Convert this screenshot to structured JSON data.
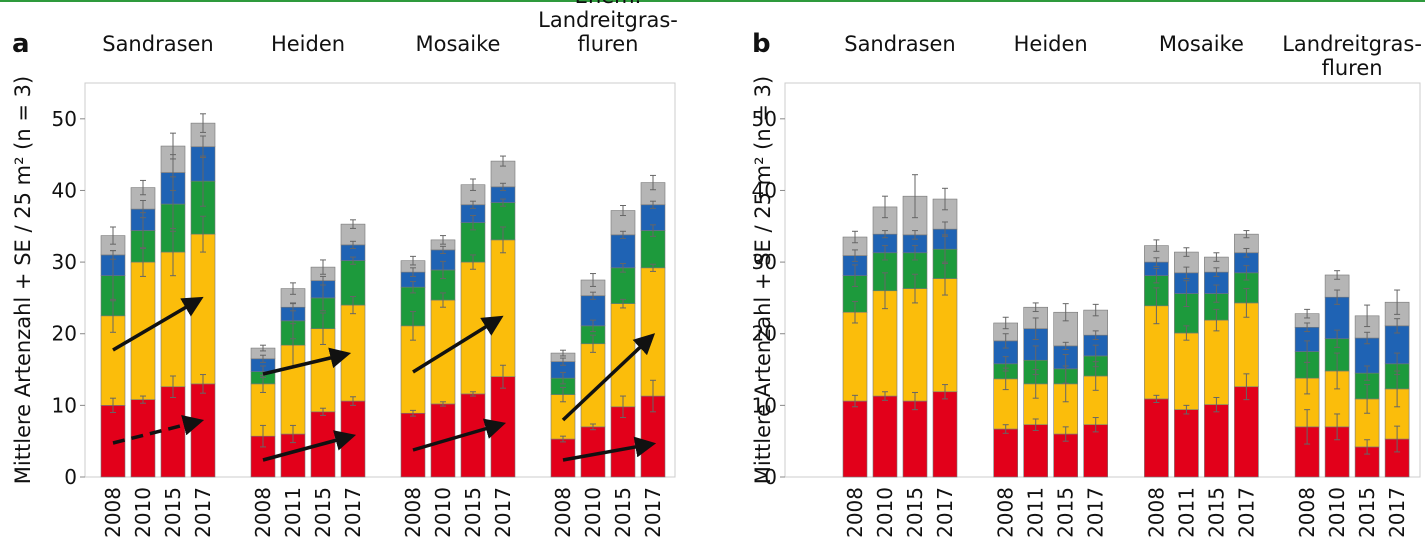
{
  "chart_data": [
    {
      "type": "bar",
      "stacked": true,
      "panel_label": "a",
      "groups": [
        [
          "Sandrasen"
        ],
        [
          "Heiden"
        ],
        [
          "Mosaike"
        ],
        [
          "Ehem.",
          "Landreitgras-",
          "fluren"
        ]
      ],
      "categories": [
        "2008",
        "2010",
        "2015",
        "2017",
        "2008",
        "2011",
        "2015",
        "2017",
        "2008",
        "2010",
        "2015",
        "2017",
        "2008",
        "2010",
        "2015",
        "2017"
      ],
      "ylabel": "Mittlere Artenzahl + SE / 25 m² (n = 3)",
      "ylim": [
        0,
        55
      ],
      "yticks": [
        0,
        10,
        20,
        30,
        40,
        50
      ],
      "series": [
        {
          "color": "#e2001a",
          "values": [
            10.0,
            10.8,
            12.6,
            13.0,
            5.7,
            6.0,
            9.1,
            10.6,
            8.9,
            10.2,
            11.6,
            14.0,
            5.3,
            7.0,
            9.8,
            11.3
          ],
          "errors": [
            1.0,
            0.5,
            1.5,
            1.3,
            1.5,
            1.2,
            0.5,
            0.6,
            0.4,
            0.3,
            0.3,
            1.6,
            0.4,
            0.4,
            1.5,
            2.2
          ]
        },
        {
          "color": "#fbbd0b",
          "values": [
            12.5,
            19.2,
            18.8,
            20.9,
            7.3,
            12.4,
            11.6,
            13.4,
            12.2,
            14.5,
            18.4,
            19.1,
            6.2,
            11.6,
            14.4,
            17.9
          ],
          "errors": [
            2.3,
            2.0,
            3.3,
            2.5,
            1.2,
            3.0,
            2.2,
            1.2,
            2.0,
            1.0,
            1.0,
            1.8,
            1.0,
            1.2,
            0.6,
            0.5
          ]
        },
        {
          "color": "#1d9a3c",
          "values": [
            5.6,
            4.4,
            6.7,
            7.4,
            1.7,
            3.4,
            4.3,
            6.2,
            5.4,
            4.2,
            5.5,
            5.2,
            2.3,
            2.5,
            5.0,
            5.2
          ],
          "errors": [
            3.5,
            2.5,
            3.8,
            3.5,
            0.8,
            2.5,
            1.8,
            0.5,
            0.8,
            1.2,
            1.0,
            0.5,
            0.8,
            0.8,
            0.6,
            0.8
          ]
        },
        {
          "color": "#1f63b4",
          "values": [
            2.9,
            3.0,
            4.4,
            4.8,
            1.8,
            1.9,
            2.4,
            2.2,
            2.1,
            2.8,
            2.5,
            2.2,
            2.3,
            4.2,
            4.6,
            3.6
          ],
          "errors": [
            0.6,
            1.2,
            2.5,
            1.5,
            0.5,
            0.5,
            0.6,
            0.5,
            0.6,
            0.5,
            0.5,
            0.5,
            0.5,
            0.5,
            0.5,
            0.5
          ]
        },
        {
          "color": "#b5b5b5",
          "values": [
            2.7,
            3.0,
            3.7,
            3.3,
            1.5,
            2.6,
            1.9,
            2.9,
            1.6,
            1.4,
            2.8,
            3.6,
            1.2,
            2.2,
            3.4,
            3.1
          ],
          "errors": [
            1.2,
            1.0,
            1.8,
            1.3,
            0.4,
            0.8,
            1.0,
            0.6,
            0.6,
            0.6,
            0.8,
            0.7,
            0.4,
            0.9,
            0.7,
            1.0
          ]
        }
      ]
    },
    {
      "type": "bar",
      "stacked": true,
      "panel_label": "b",
      "groups": [
        [
          "Sandrasen"
        ],
        [
          "Heiden"
        ],
        [
          "Mosaike"
        ],
        [
          "Landreitgras-",
          "fluren"
        ]
      ],
      "categories": [
        "2008",
        "2010",
        "2015",
        "2017",
        "2008",
        "2011",
        "2015",
        "2017",
        "2008",
        "2011",
        "2015",
        "2017",
        "2008",
        "2010",
        "2015",
        "2017"
      ],
      "ylabel": "Mittlere Artenzahl + SE / 25 m² (n = 3)",
      "ylim": [
        0,
        55
      ],
      "yticks": [
        0,
        10,
        20,
        30,
        40,
        50
      ],
      "series": [
        {
          "color": "#e2001a",
          "values": [
            10.6,
            11.3,
            10.6,
            11.9,
            6.7,
            7.3,
            6.0,
            7.3,
            10.9,
            9.4,
            10.1,
            12.6,
            7.0,
            7.0,
            4.2,
            5.3
          ],
          "errors": [
            0.8,
            0.6,
            1.2,
            1.0,
            0.6,
            0.8,
            1.0,
            1.0,
            0.5,
            0.6,
            1.0,
            1.8,
            2.4,
            1.8,
            1.0,
            1.8
          ]
        },
        {
          "color": "#fbbd0b",
          "values": [
            12.4,
            14.7,
            15.7,
            15.8,
            7.0,
            5.7,
            7.0,
            6.8,
            13.0,
            10.7,
            11.8,
            11.7,
            6.8,
            7.8,
            6.7,
            7.0
          ],
          "errors": [
            1.5,
            2.5,
            2.0,
            2.3,
            1.5,
            2.0,
            2.5,
            2.0,
            2.5,
            1.0,
            1.5,
            2.0,
            2.2,
            2.5,
            2.0,
            2.5
          ]
        },
        {
          "color": "#1d9a3c",
          "values": [
            5.1,
            5.3,
            5.0,
            4.1,
            2.1,
            3.3,
            2.1,
            2.8,
            4.2,
            5.5,
            3.7,
            4.2,
            3.7,
            4.5,
            3.6,
            3.5
          ],
          "errors": [
            1.5,
            1.0,
            1.0,
            2.0,
            1.0,
            2.0,
            2.0,
            1.5,
            1.0,
            1.8,
            1.2,
            1.0,
            1.5,
            1.2,
            1.0,
            1.5
          ]
        },
        {
          "color": "#1f63b4",
          "values": [
            2.8,
            2.6,
            2.5,
            2.8,
            3.2,
            4.4,
            3.2,
            2.9,
            1.9,
            2.9,
            3.0,
            2.8,
            3.4,
            5.8,
            4.9,
            5.3
          ],
          "errors": [
            0.8,
            0.5,
            0.6,
            1.0,
            1.0,
            1.5,
            0.5,
            0.6,
            0.6,
            0.8,
            0.6,
            0.6,
            0.6,
            1.0,
            0.8,
            1.0
          ]
        },
        {
          "color": "#b5b5b5",
          "values": [
            2.6,
            3.8,
            5.4,
            4.2,
            2.5,
            3.0,
            4.7,
            3.5,
            2.3,
            2.9,
            2.1,
            2.6,
            1.9,
            3.1,
            3.1,
            3.3
          ],
          "errors": [
            0.8,
            1.5,
            3.0,
            1.5,
            0.8,
            0.6,
            1.2,
            0.8,
            0.8,
            0.6,
            0.6,
            0.5,
            0.6,
            0.6,
            1.5,
            1.7
          ]
        }
      ]
    }
  ]
}
